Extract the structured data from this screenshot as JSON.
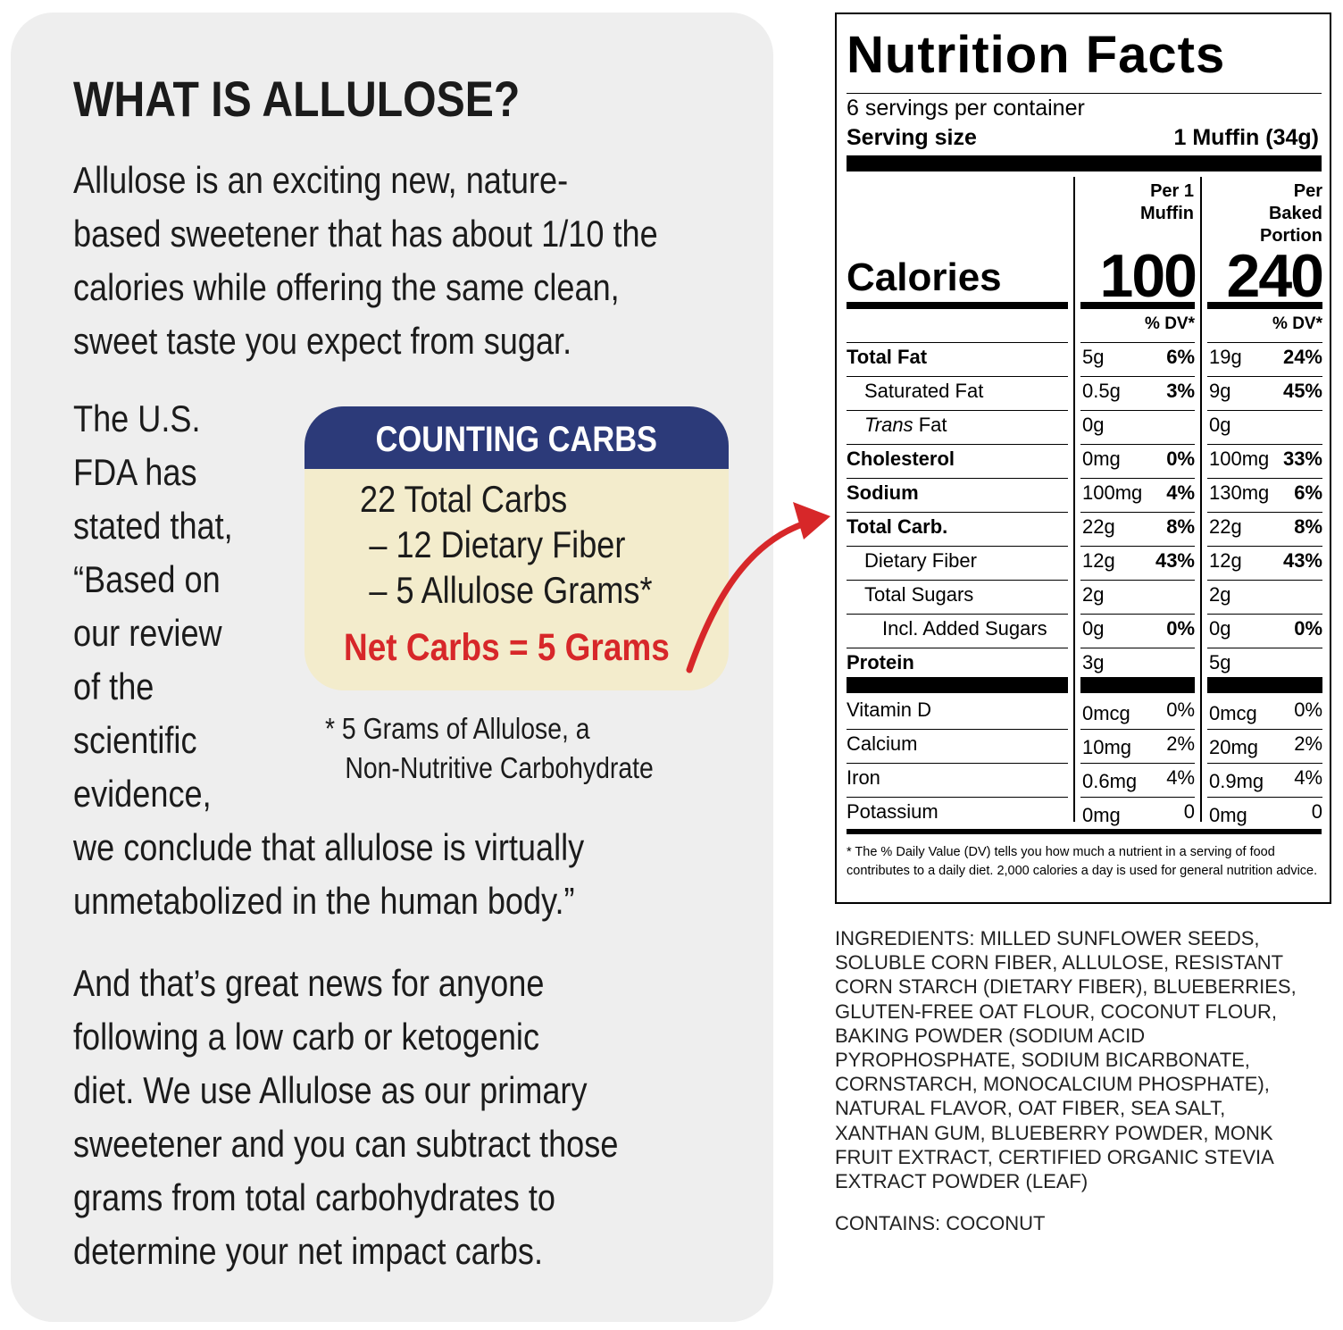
{
  "card": {
    "title": "WHAT IS ALLULOSE?",
    "intro_lines": [
      "Allulose is an exciting new, nature-",
      "based sweetener that has about 1/10 the",
      "calories while offering the same clean,",
      "sweet taste you expect from sugar."
    ],
    "fda_lines": [
      "The U.S.",
      "FDA has",
      "stated that,",
      "“Based on",
      "our review",
      "of the",
      "scientific",
      "evidence,",
      "we conclude that allulose is virtually",
      "unmetabolized in the human body.”"
    ],
    "closing_lines": [
      "And that’s great news for anyone",
      "following a low carb or ketogenic",
      "diet. We use Allulose as our primary",
      "sweetener and you can subtract those",
      "grams from total carbohydrates to",
      "determine your net impact carbs."
    ],
    "counting_carbs": {
      "title": "COUNTING CARBS",
      "lines": [
        "22 Total Carbs",
        "– 12 Dietary Fiber",
        "– 5 Allulose Grams*"
      ],
      "net": "Net Carbs = 5 Grams",
      "header_color": "#2c3a79",
      "box_color": "#f3eccc",
      "net_color": "#d72729"
    },
    "footnote": [
      "* 5 Grams of Allulose, a",
      "Non-Nutritive Carbohydrate"
    ],
    "arrow_color": "#d72729",
    "arrow_icon": "curved-arrow-right"
  },
  "nutrition": {
    "title": "Nutrition Facts",
    "servings": "6 servings per container",
    "serving_size_label": "Serving size",
    "serving_size_value": "1 Muffin (34g)",
    "col1_head": [
      "Per 1",
      "Muffin"
    ],
    "col2_head": [
      "Per",
      "Baked",
      "Portion"
    ],
    "calories_label": "Calories",
    "calories": [
      "100",
      "240"
    ],
    "dv_head": "% DV*",
    "rows": [
      {
        "name": "Total Fat",
        "bold": true,
        "indent": 0,
        "a1": "5g",
        "p1": "6%",
        "a2": "19g",
        "p2": "24%"
      },
      {
        "name": "Saturated Fat",
        "bold": false,
        "indent": 1,
        "a1": "0.5g",
        "p1": "3%",
        "a2": "9g",
        "p2": "45%"
      },
      {
        "name_italic": "Trans",
        "name": " Fat",
        "bold": false,
        "indent": 1,
        "a1": "0g",
        "p1": "",
        "a2": "0g",
        "p2": ""
      },
      {
        "name": "Cholesterol",
        "bold": true,
        "indent": 0,
        "a1": "0mg",
        "p1": "0%",
        "a2": "100mg",
        "p2": "33%"
      },
      {
        "name": "Sodium",
        "bold": true,
        "indent": 0,
        "a1": "100mg",
        "p1": "4%",
        "a2": "130mg",
        "p2": "6%"
      },
      {
        "name": "Total Carb.",
        "bold": true,
        "indent": 0,
        "a1": "22g",
        "p1": "8%",
        "a2": "22g",
        "p2": "8%"
      },
      {
        "name": "Dietary Fiber",
        "bold": false,
        "indent": 1,
        "a1": "12g",
        "p1": "43%",
        "a2": "12g",
        "p2": "43%"
      },
      {
        "name": "Total Sugars",
        "bold": false,
        "indent": 1,
        "a1": "2g",
        "p1": "",
        "a2": "2g",
        "p2": ""
      },
      {
        "name": "Incl. Added Sugars",
        "bold": false,
        "indent": 2,
        "a1": "0g",
        "p1": "0%",
        "a2": "0g",
        "p2": "0%"
      },
      {
        "name": "Protein",
        "bold": true,
        "indent": 0,
        "a1": "3g",
        "p1": "",
        "a2": "5g",
        "p2": ""
      }
    ],
    "vitamins": [
      {
        "name": "Vitamin D",
        "a1": "0mcg",
        "p1": "0%",
        "a2": "0mcg",
        "p2": "0%"
      },
      {
        "name": "Calcium",
        "a1": "10mg",
        "p1": "2%",
        "a2": "20mg",
        "p2": "2%"
      },
      {
        "name": "Iron",
        "a1": "0.6mg",
        "p1": "4%",
        "a2": "0.9mg",
        "p2": "4%"
      },
      {
        "name": "Potassium",
        "a1": "0mg",
        "p1": "0",
        "a2": "0mg",
        "p2": "0"
      }
    ],
    "footnote": "* The % Daily Value (DV) tells you how much a nutrient in a serving of food contributes to a daily diet. 2,000 calories a day is used for general nutrition advice."
  },
  "ingredients": {
    "lines": [
      "INGREDIENTS: MILLED SUNFLOWER SEEDS,",
      "SOLUBLE CORN FIBER, ALLULOSE, RESISTANT",
      "CORN STARCH (DIETARY FIBER), BLUEBERRIES,",
      "GLUTEN-FREE OAT FLOUR, COCONUT FLOUR,",
      "BAKING POWDER (SODIUM ACID",
      "PYROPHOSPHATE, SODIUM BICARBONATE,",
      "CORNSTARCH, MONOCALCIUM PHOSPHATE),",
      "NATURAL FLAVOR, OAT FIBER, SEA SALT,",
      "XANTHAN GUM, BLUEBERRY POWDER, MONK",
      "FRUIT EXTRACT, CERTIFIED ORGANIC STEVIA",
      "EXTRACT POWDER (LEAF)"
    ],
    "contains": "CONTAINS: COCONUT"
  }
}
